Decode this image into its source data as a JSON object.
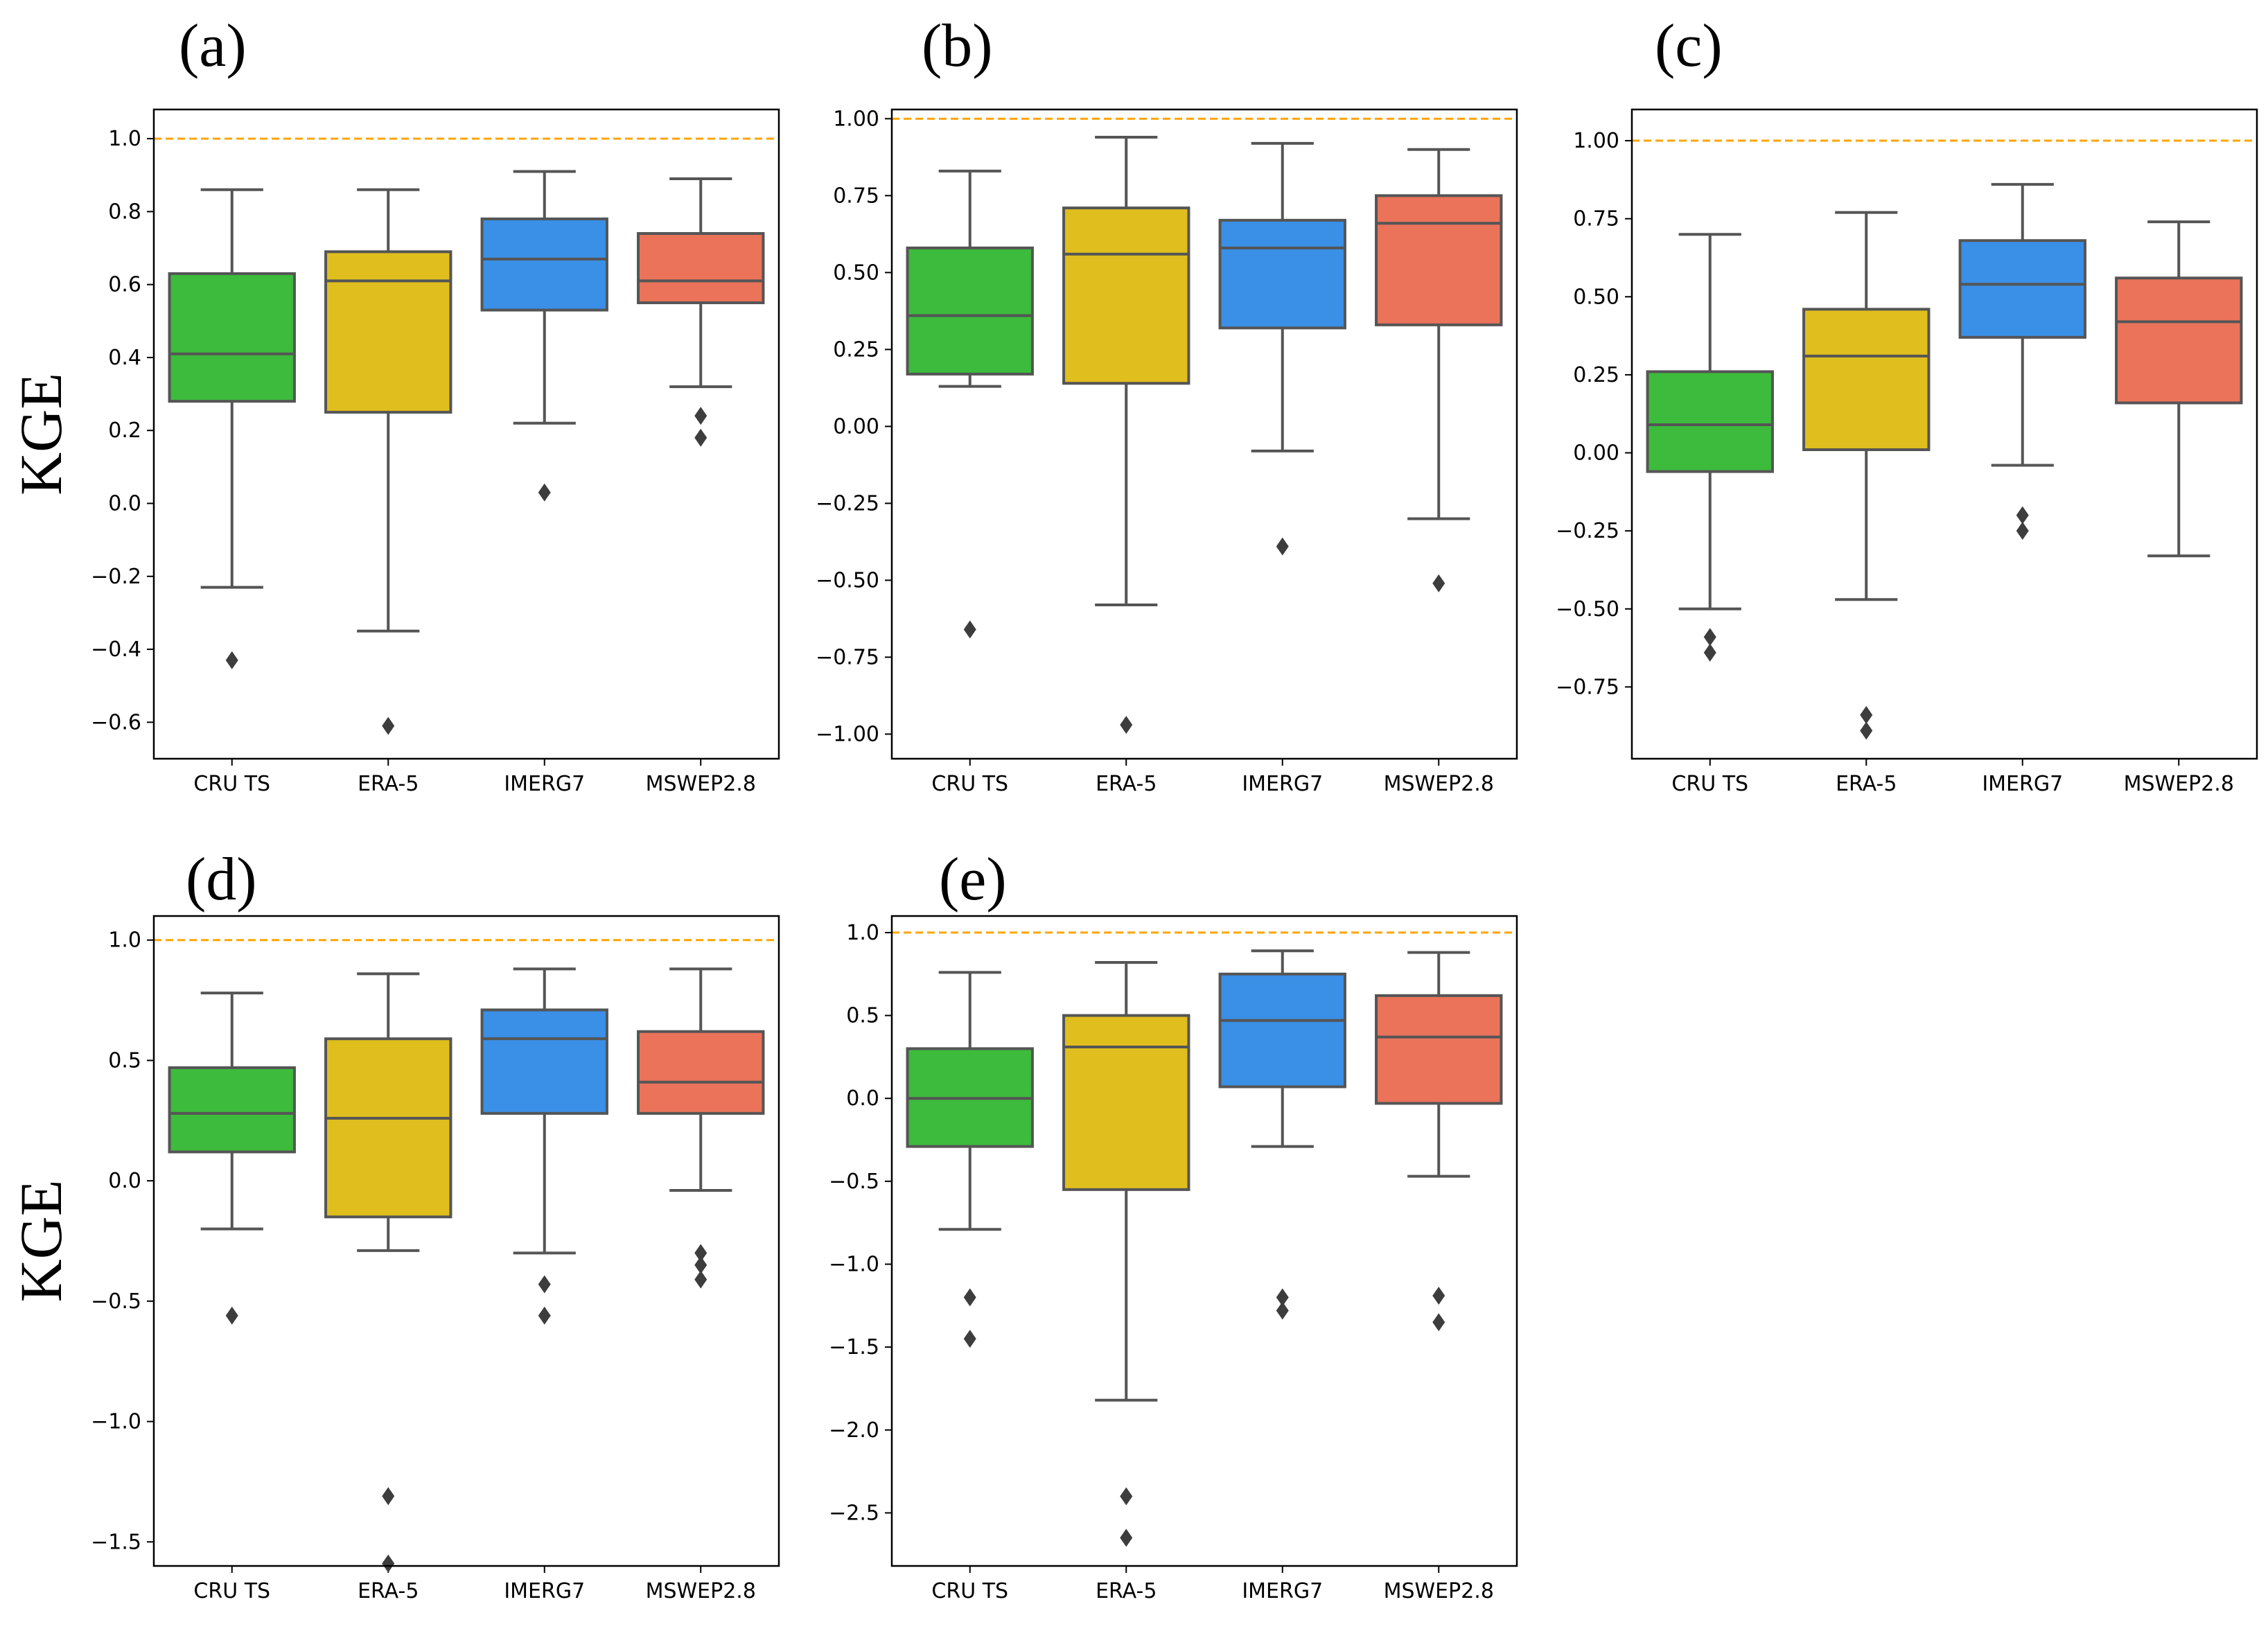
{
  "figure": {
    "ylabel": "KGE",
    "reference_line_color": "#FFA500",
    "box_edge_color": "#555555"
  },
  "chart_data": [
    {
      "panel": "(a)",
      "type": "boxplot",
      "categories": [
        "CRU TS",
        "ERA-5",
        "IMERG7",
        "MSWEP2.8"
      ],
      "colors": [
        "#3CBB3C",
        "#E0BE1E",
        "#3A8FE6",
        "#EA735A"
      ],
      "ylim": [
        -0.7,
        1.08
      ],
      "yticks": [
        -0.6,
        -0.4,
        -0.2,
        0.0,
        0.2,
        0.4,
        0.6,
        0.8,
        1.0
      ],
      "ytick_labels": [
        "−0.6",
        "−0.4",
        "−0.2",
        "0.0",
        "0.2",
        "0.4",
        "0.6",
        "0.8",
        "1.0"
      ],
      "reference_line": 1.0,
      "ylabel": "KGE",
      "boxes": [
        {
          "whislo": -0.23,
          "q1": 0.28,
          "med": 0.41,
          "q3": 0.63,
          "whishi": 0.86,
          "fliers": [
            -0.43
          ]
        },
        {
          "whislo": -0.35,
          "q1": 0.25,
          "med": 0.61,
          "q3": 0.69,
          "whishi": 0.86,
          "fliers": [
            -0.61
          ]
        },
        {
          "whislo": 0.22,
          "q1": 0.53,
          "med": 0.67,
          "q3": 0.78,
          "whishi": 0.91,
          "fliers": [
            0.03
          ]
        },
        {
          "whislo": 0.32,
          "q1": 0.55,
          "med": 0.61,
          "q3": 0.74,
          "whishi": 0.89,
          "fliers": [
            0.18,
            0.24
          ]
        }
      ]
    },
    {
      "panel": "(b)",
      "type": "boxplot",
      "categories": [
        "CRU TS",
        "ERA-5",
        "IMERG7",
        "MSWEP2.8"
      ],
      "colors": [
        "#3CBB3C",
        "#E0BE1E",
        "#3A8FE6",
        "#EA735A"
      ],
      "ylim": [
        -1.08,
        1.03
      ],
      "yticks": [
        -1.0,
        -0.75,
        -0.5,
        -0.25,
        0.0,
        0.25,
        0.5,
        0.75,
        1.0
      ],
      "ytick_labels": [
        "−1.00",
        "−0.75",
        "−0.50",
        "−0.25",
        "0.00",
        "0.25",
        "0.50",
        "0.75",
        "1.00"
      ],
      "reference_line": 1.0,
      "boxes": [
        {
          "whislo": 0.13,
          "q1": 0.17,
          "med": 0.36,
          "q3": 0.58,
          "whishi": 0.83,
          "fliers": [
            -0.66
          ]
        },
        {
          "whislo": -0.58,
          "q1": 0.14,
          "med": 0.56,
          "q3": 0.71,
          "whishi": 0.94,
          "fliers": [
            -0.97
          ]
        },
        {
          "whislo": -0.08,
          "q1": 0.32,
          "med": 0.58,
          "q3": 0.67,
          "whishi": 0.92,
          "fliers": [
            -0.39
          ]
        },
        {
          "whislo": -0.3,
          "q1": 0.33,
          "med": 0.66,
          "q3": 0.75,
          "whishi": 0.9,
          "fliers": [
            -0.51
          ]
        }
      ]
    },
    {
      "panel": "(c)",
      "type": "boxplot",
      "categories": [
        "CRU TS",
        "ERA-5",
        "IMERG7",
        "MSWEP2.8"
      ],
      "colors": [
        "#3CBB3C",
        "#E0BE1E",
        "#3A8FE6",
        "#EA735A"
      ],
      "ylim": [
        -0.98,
        1.1
      ],
      "yticks": [
        -0.75,
        -0.5,
        -0.25,
        0.0,
        0.25,
        0.5,
        0.75,
        1.0
      ],
      "ytick_labels": [
        "−0.75",
        "−0.50",
        "−0.25",
        "0.00",
        "0.25",
        "0.50",
        "0.75",
        "1.00"
      ],
      "reference_line": 1.0,
      "boxes": [
        {
          "whislo": -0.5,
          "q1": -0.06,
          "med": 0.09,
          "q3": 0.26,
          "whishi": 0.7,
          "fliers": [
            -0.59,
            -0.64
          ]
        },
        {
          "whislo": -0.47,
          "q1": 0.01,
          "med": 0.31,
          "q3": 0.46,
          "whishi": 0.77,
          "fliers": [
            -0.84,
            -0.89
          ]
        },
        {
          "whislo": -0.04,
          "q1": 0.37,
          "med": 0.54,
          "q3": 0.68,
          "whishi": 0.86,
          "fliers": [
            -0.2,
            -0.25
          ]
        },
        {
          "whislo": -0.33,
          "q1": 0.16,
          "med": 0.42,
          "q3": 0.56,
          "whishi": 0.74,
          "fliers": []
        }
      ]
    },
    {
      "panel": "(d)",
      "type": "boxplot",
      "categories": [
        "CRU TS",
        "ERA-5",
        "IMERG7",
        "MSWEP2.8"
      ],
      "colors": [
        "#3CBB3C",
        "#E0BE1E",
        "#3A8FE6",
        "#EA735A"
      ],
      "ylim": [
        -1.6,
        1.1
      ],
      "yticks": [
        -1.5,
        -1.0,
        -0.5,
        0.0,
        0.5,
        1.0
      ],
      "ytick_labels": [
        "−1.5",
        "−1.0",
        "−0.5",
        "0.0",
        "0.5",
        "1.0"
      ],
      "reference_line": 1.0,
      "ylabel": "KGE",
      "boxes": [
        {
          "whislo": -0.2,
          "q1": 0.12,
          "med": 0.28,
          "q3": 0.47,
          "whishi": 0.78,
          "fliers": [
            -0.56
          ]
        },
        {
          "whislo": -0.29,
          "q1": -0.15,
          "med": 0.26,
          "q3": 0.59,
          "whishi": 0.86,
          "fliers": [
            -1.31,
            -1.59
          ]
        },
        {
          "whislo": -0.3,
          "q1": 0.28,
          "med": 0.59,
          "q3": 0.71,
          "whishi": 0.88,
          "fliers": [
            -0.43,
            -0.56
          ]
        },
        {
          "whislo": -0.04,
          "q1": 0.28,
          "med": 0.41,
          "q3": 0.62,
          "whishi": 0.88,
          "fliers": [
            -0.3,
            -0.35,
            -0.41
          ]
        }
      ]
    },
    {
      "panel": "(e)",
      "type": "boxplot",
      "categories": [
        "CRU TS",
        "ERA-5",
        "IMERG7",
        "MSWEP2.8"
      ],
      "colors": [
        "#3CBB3C",
        "#E0BE1E",
        "#3A8FE6",
        "#EA735A"
      ],
      "ylim": [
        -2.82,
        1.1
      ],
      "yticks": [
        -2.5,
        -2.0,
        -1.5,
        -1.0,
        -0.5,
        0.0,
        0.5,
        1.0
      ],
      "ytick_labels": [
        "−2.5",
        "−2.0",
        "−1.5",
        "−1.0",
        "−0.5",
        "0.0",
        "0.5",
        "1.0"
      ],
      "reference_line": 1.0,
      "boxes": [
        {
          "whislo": -0.79,
          "q1": -0.29,
          "med": 0.0,
          "q3": 0.3,
          "whishi": 0.76,
          "fliers": [
            -1.2,
            -1.45
          ]
        },
        {
          "whislo": -1.82,
          "q1": -0.55,
          "med": 0.31,
          "q3": 0.5,
          "whishi": 0.82,
          "fliers": [
            -2.4,
            -2.65
          ]
        },
        {
          "whislo": -0.29,
          "q1": 0.07,
          "med": 0.47,
          "q3": 0.75,
          "whishi": 0.89,
          "fliers": [
            -1.2,
            -1.28
          ]
        },
        {
          "whislo": -0.47,
          "q1": -0.03,
          "med": 0.37,
          "q3": 0.62,
          "whishi": 0.88,
          "fliers": [
            -1.19,
            -1.35
          ]
        }
      ]
    }
  ]
}
